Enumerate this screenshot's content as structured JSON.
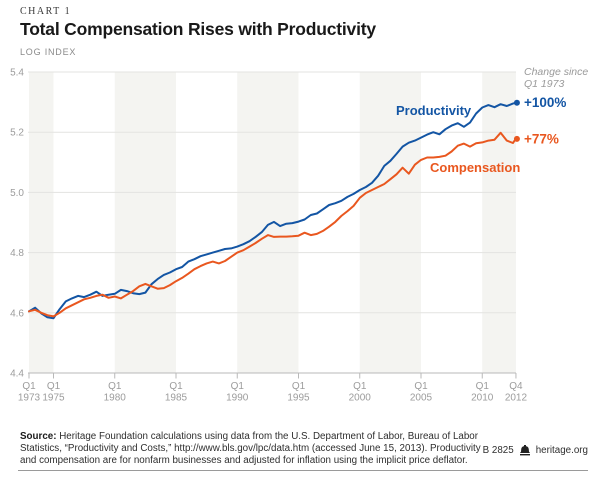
{
  "header": {
    "kicker": "CHART 1",
    "title": "Total Compensation Rises with Productivity",
    "axis_unit": "LOG INDEX"
  },
  "chart_data": {
    "type": "line",
    "title": "Total Compensation Rises with Productivity",
    "ylabel": "LOG INDEX",
    "ylim": [
      4.4,
      5.4
    ],
    "grid": true,
    "legend_position": "inline-labels",
    "colors": {
      "productivity": "#1355a4",
      "compensation": "#e9571f",
      "band": "#f4f4f1",
      "gridline": "#e3e3e1",
      "axis": "#b9b9b9",
      "tick_label": "#9c9c9c",
      "annotation_gray": "#9a9a9a"
    },
    "yticks": [
      "5.4",
      "5.2",
      "5.0",
      "4.8",
      "4.6",
      "4.4"
    ],
    "xticks": [
      {
        "q": "Q1",
        "year": "1973",
        "t": 1973.0
      },
      {
        "q": "Q1",
        "year": "1975",
        "t": 1975.0
      },
      {
        "q": "Q1",
        "year": "1980",
        "t": 1980.0
      },
      {
        "q": "Q1",
        "year": "1985",
        "t": 1985.0
      },
      {
        "q": "Q1",
        "year": "1990",
        "t": 1990.0
      },
      {
        "q": "Q1",
        "year": "1995",
        "t": 1995.0
      },
      {
        "q": "Q1",
        "year": "2000",
        "t": 2000.0
      },
      {
        "q": "Q1",
        "year": "2005",
        "t": 2005.0
      },
      {
        "q": "Q1",
        "year": "2010",
        "t": 2010.0
      },
      {
        "q": "Q4",
        "year": "2012",
        "t": 2012.75
      }
    ],
    "bands": [
      [
        1973.0,
        1975.0
      ],
      [
        1980.0,
        1985.0
      ],
      [
        1990.0,
        1995.0
      ],
      [
        2000.0,
        2005.0
      ],
      [
        2010.0,
        2012.75
      ]
    ],
    "annotation": {
      "line1": "Change since",
      "line2": "Q1 1973"
    },
    "x": [
      1973,
      1973.5,
      1974,
      1974.5,
      1975,
      1975.5,
      1976,
      1976.5,
      1977,
      1977.5,
      1978,
      1978.5,
      1979,
      1979.5,
      1980,
      1980.5,
      1981,
      1981.5,
      1982,
      1982.5,
      1983,
      1983.5,
      1984,
      1984.5,
      1985,
      1985.5,
      1986,
      1986.5,
      1987,
      1987.5,
      1988,
      1988.5,
      1989,
      1989.5,
      1990,
      1990.5,
      1991,
      1991.5,
      1992,
      1992.5,
      1993,
      1993.5,
      1994,
      1994.5,
      1995,
      1995.5,
      1996,
      1996.5,
      1997,
      1997.5,
      1998,
      1998.5,
      1999,
      1999.5,
      2000,
      2000.5,
      2001,
      2001.5,
      2002,
      2002.5,
      2003,
      2003.5,
      2004,
      2004.5,
      2005,
      2005.5,
      2006,
      2006.5,
      2007,
      2007.5,
      2008,
      2008.5,
      2009,
      2009.5,
      2010,
      2010.5,
      2011,
      2011.5,
      2012,
      2012.5,
      2012.75
    ],
    "series": [
      {
        "name": "Productivity",
        "change_label": "+100%",
        "color": "#1355a4",
        "values": [
          4.605,
          4.617,
          4.598,
          4.585,
          4.582,
          4.612,
          4.638,
          4.648,
          4.656,
          4.652,
          4.66,
          4.67,
          4.656,
          4.66,
          4.663,
          4.676,
          4.672,
          4.665,
          4.662,
          4.667,
          4.695,
          4.712,
          4.726,
          4.734,
          4.745,
          4.752,
          4.77,
          4.778,
          4.788,
          4.794,
          4.8,
          4.806,
          4.812,
          4.814,
          4.82,
          4.828,
          4.838,
          4.852,
          4.868,
          4.892,
          4.902,
          4.888,
          4.896,
          4.898,
          4.903,
          4.91,
          4.925,
          4.93,
          4.944,
          4.958,
          4.964,
          4.972,
          4.985,
          4.995,
          5.008,
          5.018,
          5.032,
          5.055,
          5.088,
          5.105,
          5.128,
          5.152,
          5.165,
          5.172,
          5.182,
          5.192,
          5.2,
          5.193,
          5.21,
          5.222,
          5.23,
          5.218,
          5.232,
          5.262,
          5.282,
          5.29,
          5.283,
          5.293,
          5.287,
          5.295,
          5.298
        ]
      },
      {
        "name": "Compensation",
        "change_label": "+77%",
        "color": "#e9571f",
        "values": [
          4.605,
          4.61,
          4.6,
          4.592,
          4.588,
          4.6,
          4.615,
          4.625,
          4.635,
          4.645,
          4.65,
          4.656,
          4.66,
          4.65,
          4.654,
          4.648,
          4.66,
          4.672,
          4.688,
          4.696,
          4.688,
          4.68,
          4.682,
          4.692,
          4.705,
          4.716,
          4.73,
          4.745,
          4.755,
          4.764,
          4.77,
          4.764,
          4.772,
          4.786,
          4.8,
          4.808,
          4.82,
          4.832,
          4.846,
          4.858,
          4.852,
          4.853,
          4.853,
          4.854,
          4.856,
          4.866,
          4.858,
          4.862,
          4.872,
          4.886,
          4.902,
          4.922,
          4.938,
          4.955,
          4.982,
          4.998,
          5.008,
          5.018,
          5.028,
          5.044,
          5.06,
          5.082,
          5.062,
          5.092,
          5.108,
          5.116,
          5.116,
          5.118,
          5.122,
          5.136,
          5.155,
          5.162,
          5.152,
          5.163,
          5.166,
          5.172,
          5.175,
          5.198,
          5.172,
          5.164,
          5.178
        ]
      }
    ]
  },
  "footer": {
    "source_label": "Source:",
    "source_lines": [
      " Heritage Foundation calculations using data from the U.S. Department of Labor, Bureau of Labor",
      "Statistics, “Productivity and Costs,” http://www.bls.gov/lpc/data.htm (accessed June 15, 2013). Productivity",
      "and compensation are for nonfarm businesses and adjusted for inflation using the implicit price deflator."
    ],
    "doc_id": "B 2825",
    "site": "heritage.org"
  }
}
